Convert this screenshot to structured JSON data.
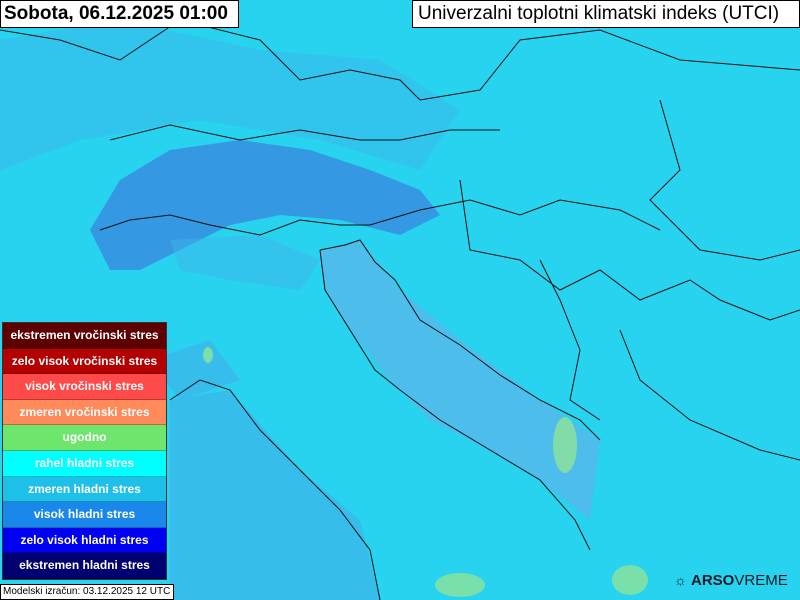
{
  "header": {
    "date_title": "Sobota, 06.12.2025 01:00",
    "product_title": "Univerzalni toplotni klimatski indeks (UTCI)"
  },
  "legend": {
    "items": [
      {
        "label": "ekstremen vročinski stres",
        "color": "#5e0000"
      },
      {
        "label": "zelo visok vročinski stres",
        "color": "#b40000"
      },
      {
        "label": "visok vročinski stres",
        "color": "#ff4a4a"
      },
      {
        "label": "zmeren vročinski stres",
        "color": "#ff8a5a"
      },
      {
        "label": "ugodno",
        "color": "#6ee66e"
      },
      {
        "label": "rahel hladni stres",
        "color": "#00ffff"
      },
      {
        "label": "zmeren hladni stres",
        "color": "#1ec0ea"
      },
      {
        "label": "visok hladni stres",
        "color": "#1a88ea"
      },
      {
        "label": "zelo visok hladni stres",
        "color": "#0000f0"
      },
      {
        "label": "ekstremen hladni stres",
        "color": "#000070"
      }
    ]
  },
  "footer": {
    "model_run": "Modelski izračun: 03.12.2025 12 UTC"
  },
  "brand": {
    "bold": "ARSO",
    "light": "VREME",
    "icon": "sun-cloud-icon"
  },
  "map_colors": {
    "land_dominant": "#27d3ee",
    "moderate_cold": "#3fb4ea",
    "high_cold": "#3a8ae0",
    "sea": "#55b8ea",
    "comfortable": "#8ee49a"
  }
}
